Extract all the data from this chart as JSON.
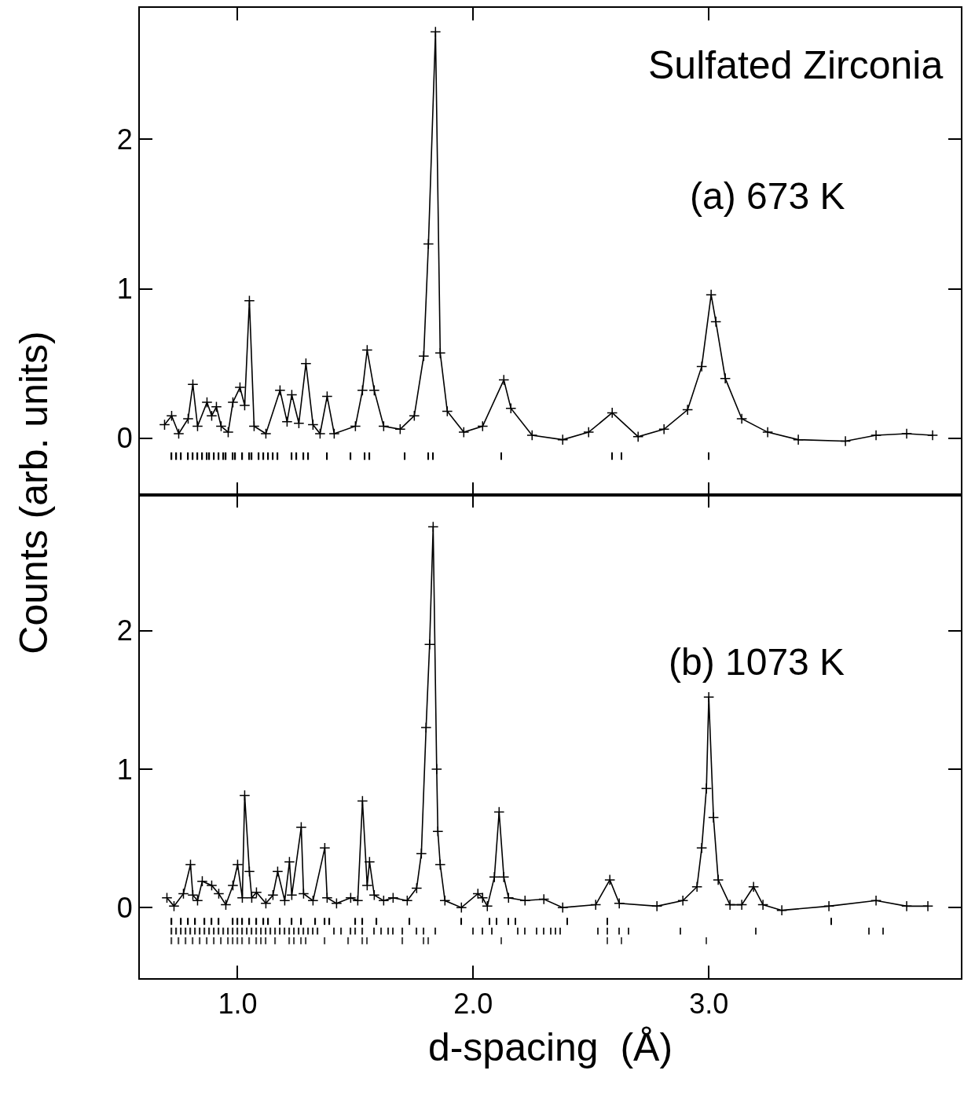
{
  "chart_data": [
    {
      "type": "line",
      "annotations": [
        "Sulfated Zirconia",
        "(a) 673 K"
      ],
      "ylabel": "Counts (arb. units)",
      "xlim": [
        0.585,
        4.07
      ],
      "ylim": [
        -0.38,
        2.88
      ],
      "xticks": [
        {
          "value": 1.0,
          "label": null
        },
        {
          "value": 2.0,
          "label": null
        },
        {
          "value": 3.0,
          "label": null
        }
      ],
      "yticks": [
        0,
        1,
        2
      ],
      "tick_labels": "y",
      "marker": "cross",
      "line_style": "solid",
      "series": [
        {
          "color": "#000000",
          "x": [
            0.69,
            0.72,
            0.75,
            0.79,
            0.81,
            0.83,
            0.87,
            0.89,
            0.91,
            0.93,
            0.96,
            0.98,
            1.01,
            1.03,
            1.05,
            1.07,
            1.12,
            1.18,
            1.21,
            1.23,
            1.26,
            1.29,
            1.32,
            1.35,
            1.38,
            1.41,
            1.5,
            1.53,
            1.55,
            1.58,
            1.62,
            1.69,
            1.75,
            1.79,
            1.81,
            1.84,
            1.86,
            1.89,
            1.96,
            2.04,
            2.13,
            2.16,
            2.25,
            2.38,
            2.49,
            2.59,
            2.7,
            2.81,
            2.91,
            2.97,
            3.01,
            3.03,
            3.07,
            3.14,
            3.25,
            3.38,
            3.58,
            3.71,
            3.84,
            3.95
          ],
          "values": [
            0.09,
            0.15,
            0.03,
            0.13,
            0.36,
            0.08,
            0.24,
            0.15,
            0.21,
            0.08,
            0.04,
            0.24,
            0.34,
            0.22,
            0.92,
            0.08,
            0.03,
            0.32,
            0.11,
            0.29,
            0.1,
            0.5,
            0.09,
            0.03,
            0.28,
            0.03,
            0.08,
            0.32,
            0.59,
            0.32,
            0.08,
            0.06,
            0.15,
            0.55,
            1.3,
            2.72,
            0.57,
            0.18,
            0.04,
            0.08,
            0.39,
            0.2,
            0.02,
            -0.01,
            0.04,
            0.17,
            0.01,
            0.06,
            0.19,
            0.48,
            0.96,
            0.78,
            0.4,
            0.13,
            0.04,
            -0.01,
            -0.02,
            0.02,
            0.03,
            0.02
          ]
        },
        {
          "type": "bar",
          "color": "#000000",
          "x": [
            0.72,
            0.74,
            0.76,
            0.79,
            0.81,
            0.83,
            0.85,
            0.87,
            0.88,
            0.9,
            0.92,
            0.94,
            0.95,
            0.98,
            0.99,
            1.02,
            1.05,
            1.06,
            1.09,
            1.11,
            1.13,
            1.15,
            1.17,
            1.23,
            1.25,
            1.28,
            1.3,
            1.38,
            1.48,
            1.54,
            1.56,
            1.71,
            1.81,
            1.83,
            2.12,
            2.59,
            2.63,
            3.0
          ],
          "base": [
            -0.145,
            -0.145,
            -0.145,
            -0.145,
            -0.145,
            -0.145,
            -0.145,
            -0.145,
            -0.145,
            -0.145,
            -0.145,
            -0.145,
            -0.145,
            -0.145,
            -0.145,
            -0.145,
            -0.145,
            -0.145,
            -0.145,
            -0.145,
            -0.145,
            -0.145,
            -0.145,
            -0.145,
            -0.145,
            -0.145,
            -0.145,
            -0.145,
            -0.145,
            -0.145,
            -0.145,
            -0.145,
            -0.145,
            -0.145,
            -0.145,
            -0.145,
            -0.145,
            -0.145
          ],
          "values": [
            0.05,
            0.05,
            0.05,
            0.05,
            0.05,
            0.05,
            0.05,
            0.05,
            0.05,
            0.05,
            0.05,
            0.05,
            0.05,
            0.05,
            0.05,
            0.05,
            0.05,
            0.05,
            0.05,
            0.05,
            0.05,
            0.05,
            0.05,
            0.05,
            0.05,
            0.05,
            0.05,
            0.05,
            0.05,
            0.05,
            0.05,
            0.05,
            0.05,
            0.05,
            0.05,
            0.05,
            0.05,
            0.05
          ]
        }
      ]
    },
    {
      "type": "line",
      "annotations": [
        "(b) 1073 K"
      ],
      "xlabel": "d-spacing  (Å)",
      "xlim": [
        0.585,
        4.07
      ],
      "ylim": [
        -0.51,
        2.98
      ],
      "xticks": [
        {
          "value": 1.0,
          "label": "1.0"
        },
        {
          "value": 2.0,
          "label": "2.0"
        },
        {
          "value": 3.0,
          "label": "3.0"
        }
      ],
      "yticks": [
        0,
        1,
        2
      ],
      "marker": "cross",
      "line_style": "solid",
      "series": [
        {
          "color": "#000000",
          "x": [
            0.7,
            0.73,
            0.77,
            0.8,
            0.81,
            0.83,
            0.85,
            0.89,
            0.92,
            0.95,
            0.98,
            1.0,
            1.02,
            1.03,
            1.05,
            1.06,
            1.08,
            1.12,
            1.15,
            1.17,
            1.2,
            1.22,
            1.23,
            1.27,
            1.28,
            1.32,
            1.37,
            1.38,
            1.42,
            1.48,
            1.51,
            1.53,
            1.55,
            1.56,
            1.58,
            1.62,
            1.66,
            1.72,
            1.76,
            1.78,
            1.8,
            1.815,
            1.83,
            1.845,
            1.85,
            1.86,
            1.88,
            1.95,
            2.02,
            2.04,
            2.06,
            2.09,
            2.11,
            2.13,
            2.15,
            2.22,
            2.3,
            2.38,
            2.52,
            2.58,
            2.62,
            2.78,
            2.89,
            2.95,
            2.97,
            2.99,
            3.0,
            3.02,
            3.04,
            3.09,
            3.14,
            3.19,
            3.23,
            3.31,
            3.51,
            3.71,
            3.84,
            3.93
          ],
          "values": [
            0.07,
            0.01,
            0.1,
            0.31,
            0.09,
            0.05,
            0.19,
            0.16,
            0.1,
            0.02,
            0.16,
            0.31,
            0.07,
            0.81,
            0.26,
            0.07,
            0.11,
            0.03,
            0.09,
            0.26,
            0.05,
            0.33,
            0.09,
            0.58,
            0.1,
            0.05,
            0.43,
            0.07,
            0.03,
            0.07,
            0.05,
            0.77,
            0.16,
            0.33,
            0.09,
            0.05,
            0.07,
            0.05,
            0.14,
            0.39,
            1.3,
            1.9,
            2.75,
            1.0,
            0.55,
            0.31,
            0.05,
            0.0,
            0.1,
            0.07,
            0.01,
            0.22,
            0.69,
            0.22,
            0.07,
            0.05,
            0.06,
            0.0,
            0.02,
            0.2,
            0.03,
            0.01,
            0.05,
            0.15,
            0.43,
            0.86,
            1.52,
            0.65,
            0.2,
            0.02,
            0.02,
            0.15,
            0.02,
            -0.02,
            0.01,
            0.05,
            0.01,
            0.01
          ]
        },
        {
          "type": "bar",
          "color": "#000000",
          "x": [
            0.72,
            0.76,
            0.79,
            0.82,
            0.86,
            0.89,
            0.92,
            0.98,
            1.0,
            1.02,
            1.05,
            1.08,
            1.11,
            1.13,
            1.18,
            1.23,
            1.27,
            1.33,
            1.37,
            1.39,
            1.5,
            1.53,
            1.59,
            1.73,
            1.95,
            2.07,
            2.1,
            2.15,
            2.18,
            2.4,
            2.57,
            3.52
          ],
          "base": [
            -0.125,
            -0.125,
            -0.125,
            -0.125,
            -0.125,
            -0.125,
            -0.125,
            -0.125,
            -0.125,
            -0.125,
            -0.125,
            -0.125,
            -0.125,
            -0.125,
            -0.125,
            -0.125,
            -0.125,
            -0.125,
            -0.125,
            -0.125,
            -0.125,
            -0.125,
            -0.125,
            -0.125,
            -0.125,
            -0.125,
            -0.125,
            -0.125,
            -0.125,
            -0.125,
            -0.125,
            -0.125
          ],
          "values": [
            0.05,
            0.05,
            0.05,
            0.05,
            0.05,
            0.05,
            0.05,
            0.05,
            0.05,
            0.05,
            0.05,
            0.05,
            0.05,
            0.05,
            0.05,
            0.05,
            0.05,
            0.05,
            0.05,
            0.05,
            0.05,
            0.05,
            0.05,
            0.05,
            0.05,
            0.05,
            0.05,
            0.05,
            0.05,
            0.05,
            0.05,
            0.05
          ]
        },
        {
          "type": "bar",
          "color": "#2a2a2a",
          "x": [
            0.72,
            0.74,
            0.76,
            0.78,
            0.8,
            0.82,
            0.84,
            0.86,
            0.88,
            0.9,
            0.92,
            0.94,
            0.96,
            0.98,
            1.0,
            1.02,
            1.04,
            1.06,
            1.08,
            1.1,
            1.12,
            1.14,
            1.16,
            1.18,
            1.2,
            1.22,
            1.24,
            1.26,
            1.28,
            1.3,
            1.32,
            1.34,
            1.41,
            1.44,
            1.48,
            1.5,
            1.53,
            1.58,
            1.61,
            1.64,
            1.66,
            1.7,
            1.76,
            1.79,
            1.84,
            2.0,
            2.04,
            2.08,
            2.19,
            2.22,
            2.27,
            2.3,
            2.33,
            2.35,
            2.37,
            2.53,
            2.57,
            2.62,
            2.66,
            2.88,
            3.2,
            3.68,
            3.74
          ],
          "base": [
            -0.195,
            -0.195,
            -0.195,
            -0.195,
            -0.195,
            -0.195,
            -0.195,
            -0.195,
            -0.195,
            -0.195,
            -0.195,
            -0.195,
            -0.195,
            -0.195,
            -0.195,
            -0.195,
            -0.195,
            -0.195,
            -0.195,
            -0.195,
            -0.195,
            -0.195,
            -0.195,
            -0.195,
            -0.195,
            -0.195,
            -0.195,
            -0.195,
            -0.195,
            -0.195,
            -0.195,
            -0.195,
            -0.195,
            -0.195,
            -0.195,
            -0.195,
            -0.195,
            -0.195,
            -0.195,
            -0.195,
            -0.195,
            -0.195,
            -0.195,
            -0.195,
            -0.195,
            -0.195,
            -0.195,
            -0.195,
            -0.195,
            -0.195,
            -0.195,
            -0.195,
            -0.195,
            -0.195,
            -0.195,
            -0.195,
            -0.195,
            -0.195,
            -0.195,
            -0.195,
            -0.195,
            -0.195,
            -0.195
          ],
          "values": [
            0.05,
            0.05,
            0.05,
            0.05,
            0.05,
            0.05,
            0.05,
            0.05,
            0.05,
            0.05,
            0.05,
            0.05,
            0.05,
            0.05,
            0.05,
            0.05,
            0.05,
            0.05,
            0.05,
            0.05,
            0.05,
            0.05,
            0.05,
            0.05,
            0.05,
            0.05,
            0.05,
            0.05,
            0.05,
            0.05,
            0.05,
            0.05,
            0.05,
            0.05,
            0.05,
            0.05,
            0.05,
            0.05,
            0.05,
            0.05,
            0.05,
            0.05,
            0.05,
            0.05,
            0.05,
            0.05,
            0.05,
            0.05,
            0.05,
            0.05,
            0.05,
            0.05,
            0.05,
            0.05,
            0.05,
            0.05,
            0.05,
            0.05,
            0.05,
            0.05,
            0.05,
            0.05,
            0.05
          ]
        },
        {
          "type": "bar",
          "color": "#4a4a4a",
          "x": [
            0.72,
            0.75,
            0.78,
            0.81,
            0.84,
            0.87,
            0.9,
            0.93,
            0.96,
            0.98,
            1.0,
            1.02,
            1.05,
            1.08,
            1.1,
            1.12,
            1.16,
            1.22,
            1.24,
            1.27,
            1.29,
            1.37,
            1.47,
            1.53,
            1.55,
            1.7,
            1.79,
            1.81,
            2.12,
            2.57,
            2.63,
            2.99
          ],
          "base": [
            -0.265,
            -0.265,
            -0.265,
            -0.265,
            -0.265,
            -0.265,
            -0.265,
            -0.265,
            -0.265,
            -0.265,
            -0.265,
            -0.265,
            -0.265,
            -0.265,
            -0.265,
            -0.265,
            -0.265,
            -0.265,
            -0.265,
            -0.265,
            -0.265,
            -0.265,
            -0.265,
            -0.265,
            -0.265,
            -0.265,
            -0.265,
            -0.265,
            -0.265,
            -0.265,
            -0.265,
            -0.265
          ],
          "values": [
            0.05,
            0.05,
            0.05,
            0.05,
            0.05,
            0.05,
            0.05,
            0.05,
            0.05,
            0.05,
            0.05,
            0.05,
            0.05,
            0.05,
            0.05,
            0.05,
            0.05,
            0.05,
            0.05,
            0.05,
            0.05,
            0.05,
            0.05,
            0.05,
            0.05,
            0.05,
            0.05,
            0.05,
            0.05,
            0.05,
            0.05,
            0.05
          ]
        }
      ]
    }
  ]
}
